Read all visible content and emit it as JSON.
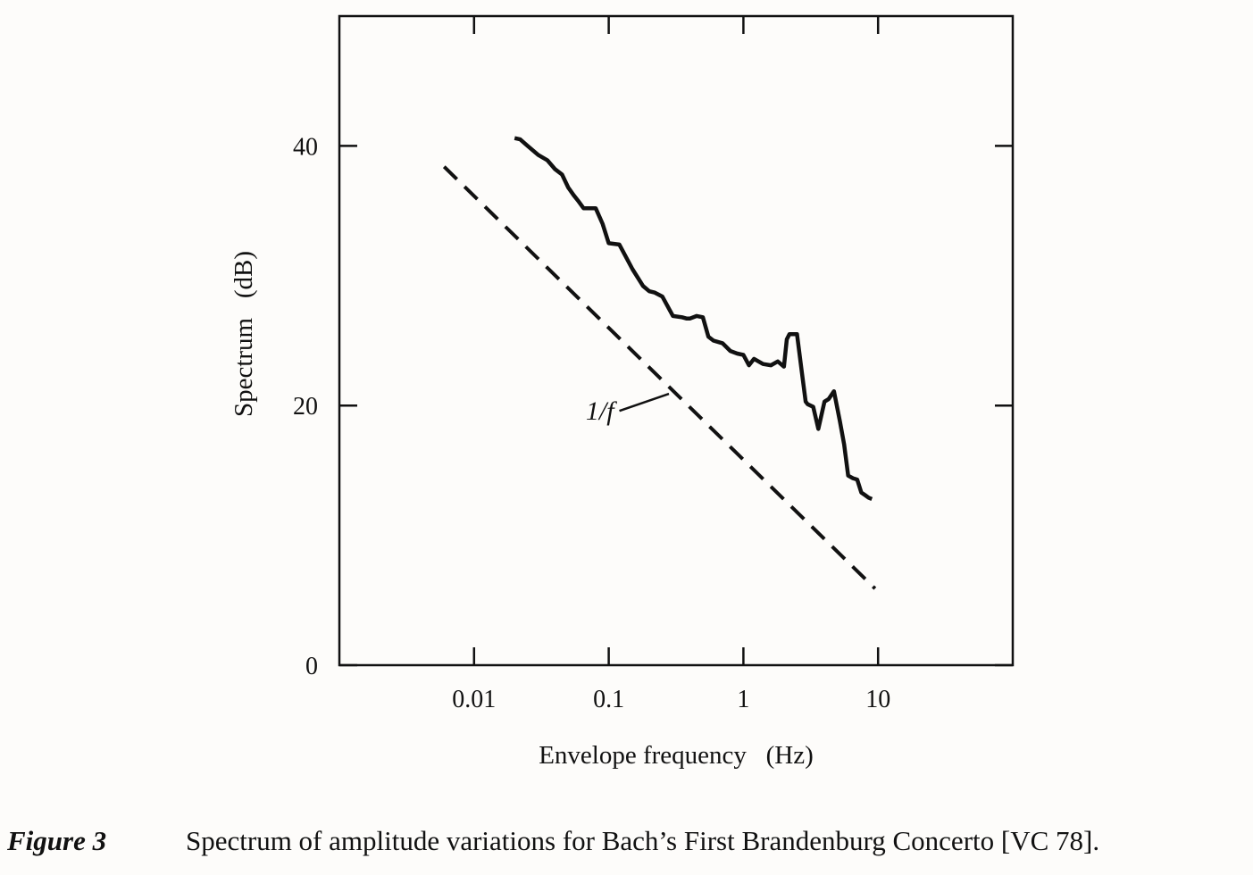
{
  "figure": {
    "label": "Figure 3",
    "caption": "Spectrum of amplitude variations for Bach’s First Brandenburg Concerto [VC 78]."
  },
  "chart_data": {
    "type": "line",
    "title": "",
    "xlabel": "Envelope frequency   (Hz)",
    "ylabel": "Spectrum   (dB)",
    "x_scale": "log",
    "xlim": [
      0.001,
      100
    ],
    "ylim": [
      0,
      50
    ],
    "x_ticks": [
      0.01,
      0.1,
      1,
      10
    ],
    "x_tick_labels": [
      "0.01",
      "0.1",
      "1",
      "10"
    ],
    "y_ticks": [
      0,
      20,
      40
    ],
    "y_tick_labels": [
      "0",
      "20",
      "40"
    ],
    "grid": false,
    "legend": "none",
    "series": [
      {
        "style": "solid",
        "color": "#111111",
        "x": [
          0.02,
          0.022,
          0.025,
          0.03,
          0.035,
          0.04,
          0.045,
          0.05,
          0.055,
          0.06,
          0.065,
          0.07,
          0.075,
          0.08,
          0.09,
          0.1,
          0.12,
          0.15,
          0.18,
          0.2,
          0.22,
          0.25,
          0.3,
          0.35,
          0.38,
          0.4,
          0.45,
          0.5,
          0.55,
          0.6,
          0.7,
          0.8,
          0.9,
          1.0,
          1.1,
          1.2,
          1.4,
          1.6,
          1.8,
          2.0,
          2.1,
          2.2,
          2.3,
          2.5,
          2.7,
          2.9,
          3.0,
          3.3,
          3.6,
          4.0,
          4.3,
          4.7,
          5.2,
          5.6,
          6.0,
          6.5,
          7.0,
          7.5,
          8.0,
          8.5,
          9.0
        ],
        "y": [
          40.6,
          40.5,
          40.0,
          39.3,
          38.9,
          38.2,
          37.8,
          36.8,
          36.2,
          35.7,
          35.2,
          35.2,
          35.2,
          35.2,
          34.0,
          32.5,
          32.4,
          30.5,
          29.2,
          28.8,
          28.7,
          28.4,
          26.9,
          26.8,
          26.7,
          26.7,
          26.9,
          26.8,
          25.3,
          25.0,
          24.8,
          24.2,
          24.0,
          23.9,
          23.1,
          23.6,
          23.2,
          23.1,
          23.4,
          23.0,
          25.1,
          25.5,
          25.5,
          25.5,
          22.8,
          20.3,
          20.1,
          19.9,
          18.2,
          20.3,
          20.5,
          21.1,
          18.8,
          17.0,
          14.6,
          14.4,
          14.3,
          13.3,
          13.1,
          12.9,
          12.8
        ]
      },
      {
        "style": "dashed",
        "color": "#111111",
        "x": [
          0.006,
          9.5
        ],
        "y": [
          38.4,
          5.9
        ]
      }
    ],
    "annotations": [
      {
        "text": "1/f",
        "x": 0.12,
        "y": 20.0,
        "arrow_to": {
          "x": 0.28,
          "y": 20.9
        }
      }
    ]
  }
}
